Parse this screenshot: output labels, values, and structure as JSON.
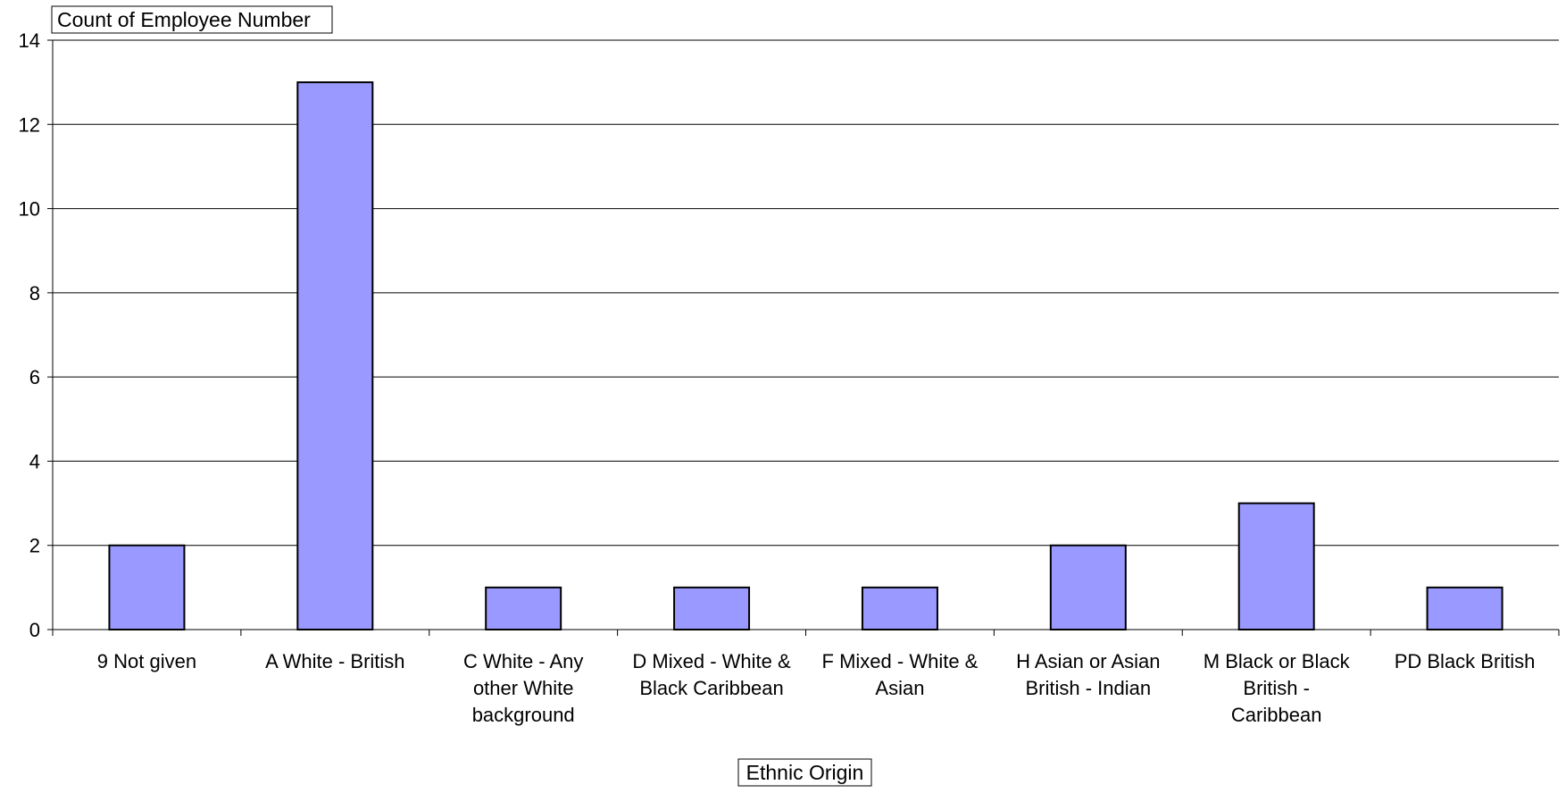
{
  "chart_data": {
    "type": "bar",
    "field_button_label": "Count of Employee Number",
    "category_field_label": "Ethnic Origin",
    "categories": [
      "9 Not given",
      "A White - British",
      "C White - Any other White background",
      "D Mixed - White & Black Caribbean",
      "F Mixed - White & Asian",
      "H Asian or Asian British - Indian",
      "M Black or Black British - Caribbean",
      "PD Black British"
    ],
    "category_label_lines": [
      [
        "9 Not given"
      ],
      [
        "A White - British"
      ],
      [
        "C White - Any",
        "other White",
        "background"
      ],
      [
        "D Mixed - White &",
        "Black Caribbean"
      ],
      [
        "F Mixed - White &",
        "Asian"
      ],
      [
        "H Asian or Asian",
        "British - Indian"
      ],
      [
        "M Black or Black",
        "British -",
        "Caribbean"
      ],
      [
        "PD Black British"
      ]
    ],
    "series": [
      {
        "values": [
          2,
          13,
          1,
          1,
          1,
          2,
          3,
          1
        ]
      }
    ],
    "ylim": [
      0,
      14
    ],
    "yticks": [
      0,
      2,
      4,
      6,
      8,
      10,
      12,
      14
    ],
    "grid": true,
    "legend": "none",
    "bar_color": "#9999FF",
    "bar_outline_color": "#000000"
  }
}
